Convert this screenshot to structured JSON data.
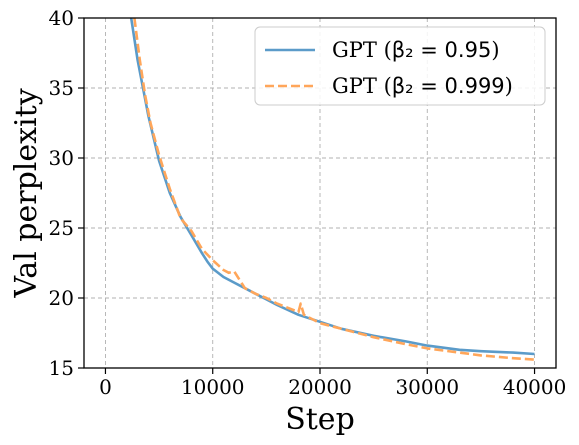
{
  "chart_data": {
    "type": "line",
    "title": "",
    "xlabel": "Step",
    "ylabel": "Val perplexity",
    "xlim": [
      -2000,
      42000
    ],
    "ylim": [
      15,
      40
    ],
    "xticks": [
      0,
      10000,
      20000,
      30000,
      40000
    ],
    "xtick_labels": [
      "0",
      "10000",
      "20000",
      "30000",
      "40000"
    ],
    "yticks": [
      15,
      20,
      25,
      30,
      35,
      40
    ],
    "ytick_labels": [
      "15",
      "20",
      "25",
      "30",
      "35",
      "40"
    ],
    "grid": true,
    "legend_position": "top-right",
    "series": [
      {
        "name": "GPT (β₂ = 0.95)",
        "name_prefix": "GPT (",
        "name_math": "β₂ = 0.95",
        "name_suffix": ")",
        "color": "#5B9BC9",
        "style": "solid",
        "x": [
          2400,
          3000,
          3500,
          4000,
          5000,
          6000,
          7000,
          8000,
          9000,
          9500,
          10000,
          11000,
          12000,
          13000,
          14000,
          15000,
          16000,
          18000,
          20000,
          22000,
          25000,
          28000,
          30000,
          33000,
          35000,
          38000,
          40000
        ],
        "y": [
          40,
          37,
          35,
          33,
          29.8,
          27.5,
          25.8,
          24.5,
          23.2,
          22.6,
          22.1,
          21.5,
          21.1,
          20.7,
          20.3,
          19.9,
          19.5,
          18.8,
          18.3,
          17.8,
          17.3,
          16.9,
          16.6,
          16.3,
          16.2,
          16.1,
          16.0
        ]
      },
      {
        "name": "GPT (β₂ = 0.999)",
        "name_prefix": "GPT (",
        "name_math": "β₂ = 0.999",
        "name_suffix": ")",
        "color": "#FFA65A",
        "style": "dashed",
        "x": [
          2700,
          3200,
          3700,
          4200,
          5000,
          6000,
          7000,
          8000,
          9000,
          10000,
          11000,
          11500,
          12000,
          13000,
          14000,
          15000,
          16000,
          17000,
          18000,
          18200,
          18500,
          19000,
          20000,
          22000,
          25000,
          28000,
          30000,
          33000,
          35000,
          38000,
          40000
        ],
        "y": [
          40,
          37,
          34.5,
          32.5,
          30.2,
          27.8,
          25.7,
          24.8,
          23.5,
          22.7,
          22.0,
          21.8,
          21.9,
          20.7,
          20.3,
          20.0,
          19.6,
          19.3,
          19.0,
          19.6,
          18.8,
          18.6,
          18.2,
          17.8,
          17.2,
          16.7,
          16.4,
          16.1,
          15.9,
          15.7,
          15.6
        ]
      }
    ]
  }
}
